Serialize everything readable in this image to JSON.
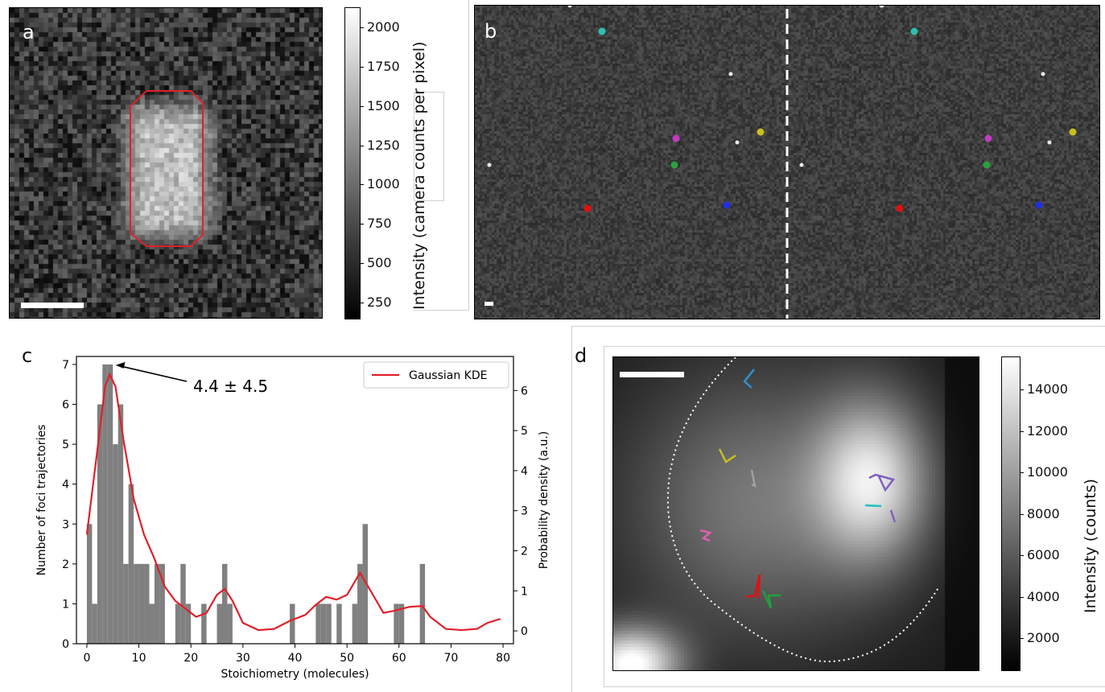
{
  "panels": {
    "a": {
      "letter": "a",
      "colorbar": {
        "label": "Intensity (camera counts per pixel)",
        "ticks": [
          "2000",
          "1750",
          "1500",
          "1250",
          "1000",
          "750",
          "500",
          "250"
        ],
        "tick_values": [
          2000,
          1750,
          1500,
          1250,
          1000,
          750,
          500,
          250
        ],
        "range": [
          150,
          2130
        ]
      },
      "outline_color": "#e0202a"
    },
    "b": {
      "letter": "b",
      "track_colors": [
        "#2bc0b0",
        "#c03cc0",
        "#c8c020",
        "#2aa040",
        "#e01010",
        "#2030e0"
      ]
    },
    "c": {
      "letter": "c",
      "annotation": "4.4 ± 4.5",
      "legend": "Gaussian KDE",
      "kde_color": "#e0202a",
      "bar_color": "#808080"
    },
    "d": {
      "letter": "d",
      "colorbar": {
        "label": "Intensity (counts)",
        "ticks": [
          "14000",
          "12000",
          "10000",
          "8000",
          "6000",
          "4000",
          "2000"
        ],
        "tick_values": [
          14000,
          12000,
          10000,
          8000,
          6000,
          4000,
          2000
        ],
        "range": [
          500,
          15600
        ]
      },
      "track_colors": [
        "#3090d0",
        "#c8c020",
        "#a0a0a0",
        "#e060b0",
        "#e01010",
        "#20a040",
        "#8060c0",
        "#20c0c0"
      ]
    }
  },
  "chart_data": {
    "type": "bar",
    "xlabel": "Stoichiometry (molecules)",
    "ylabel": "Number of foci trajectories",
    "y2label": "Probability density (a.u.)",
    "xlim": [
      -2,
      82
    ],
    "ylim": [
      0,
      7.2
    ],
    "y2lim": [
      -0.32,
      6.85
    ],
    "xticks": [
      0,
      10,
      20,
      30,
      40,
      50,
      60,
      70,
      80
    ],
    "yticks": [
      0,
      1,
      2,
      3,
      4,
      5,
      6,
      7
    ],
    "y2ticks": [
      0,
      1,
      2,
      3,
      4,
      5,
      6
    ],
    "bin_width": 1,
    "bins": [
      {
        "x": 0,
        "count": 3
      },
      {
        "x": 1,
        "count": 1
      },
      {
        "x": 2,
        "count": 6
      },
      {
        "x": 3,
        "count": 7
      },
      {
        "x": 4,
        "count": 7
      },
      {
        "x": 5,
        "count": 5
      },
      {
        "x": 6,
        "count": 6
      },
      {
        "x": 7,
        "count": 2
      },
      {
        "x": 8,
        "count": 4
      },
      {
        "x": 9,
        "count": 2
      },
      {
        "x": 10,
        "count": 2
      },
      {
        "x": 11,
        "count": 2
      },
      {
        "x": 12,
        "count": 1
      },
      {
        "x": 13,
        "count": 2
      },
      {
        "x": 14,
        "count": 2
      },
      {
        "x": 17,
        "count": 1
      },
      {
        "x": 18,
        "count": 2
      },
      {
        "x": 19,
        "count": 1
      },
      {
        "x": 22,
        "count": 1
      },
      {
        "x": 25,
        "count": 1
      },
      {
        "x": 26,
        "count": 2
      },
      {
        "x": 27,
        "count": 1
      },
      {
        "x": 39,
        "count": 1
      },
      {
        "x": 44,
        "count": 1
      },
      {
        "x": 45,
        "count": 1
      },
      {
        "x": 46,
        "count": 1
      },
      {
        "x": 48,
        "count": 1
      },
      {
        "x": 51,
        "count": 1
      },
      {
        "x": 52,
        "count": 2
      },
      {
        "x": 53,
        "count": 3
      },
      {
        "x": 59,
        "count": 1
      },
      {
        "x": 60,
        "count": 1
      },
      {
        "x": 64,
        "count": 2
      }
    ],
    "kde": [
      [
        0,
        2.4
      ],
      [
        2,
        4.5
      ],
      [
        3.5,
        6.1
      ],
      [
        4.4,
        6.4
      ],
      [
        5.5,
        6.1
      ],
      [
        7,
        4.8
      ],
      [
        9,
        3.3
      ],
      [
        11,
        2.4
      ],
      [
        13,
        1.8
      ],
      [
        15,
        1.1
      ],
      [
        17,
        0.75
      ],
      [
        19,
        0.55
      ],
      [
        21,
        0.35
      ],
      [
        23,
        0.45
      ],
      [
        25,
        0.9
      ],
      [
        26.5,
        1.05
      ],
      [
        28,
        0.75
      ],
      [
        30,
        0.2
      ],
      [
        33,
        0.02
      ],
      [
        36,
        0.05
      ],
      [
        39,
        0.25
      ],
      [
        42,
        0.4
      ],
      [
        44,
        0.65
      ],
      [
        46,
        0.85
      ],
      [
        48,
        0.78
      ],
      [
        50,
        0.9
      ],
      [
        52.5,
        1.45
      ],
      [
        55,
        0.9
      ],
      [
        57,
        0.45
      ],
      [
        59,
        0.5
      ],
      [
        62,
        0.6
      ],
      [
        64.5,
        0.62
      ],
      [
        66,
        0.35
      ],
      [
        69,
        0.05
      ],
      [
        72,
        0.02
      ],
      [
        75,
        0.05
      ],
      [
        77,
        0.2
      ],
      [
        79.5,
        0.3
      ]
    ],
    "peak": {
      "x": 4.4,
      "y": 7.0
    }
  }
}
